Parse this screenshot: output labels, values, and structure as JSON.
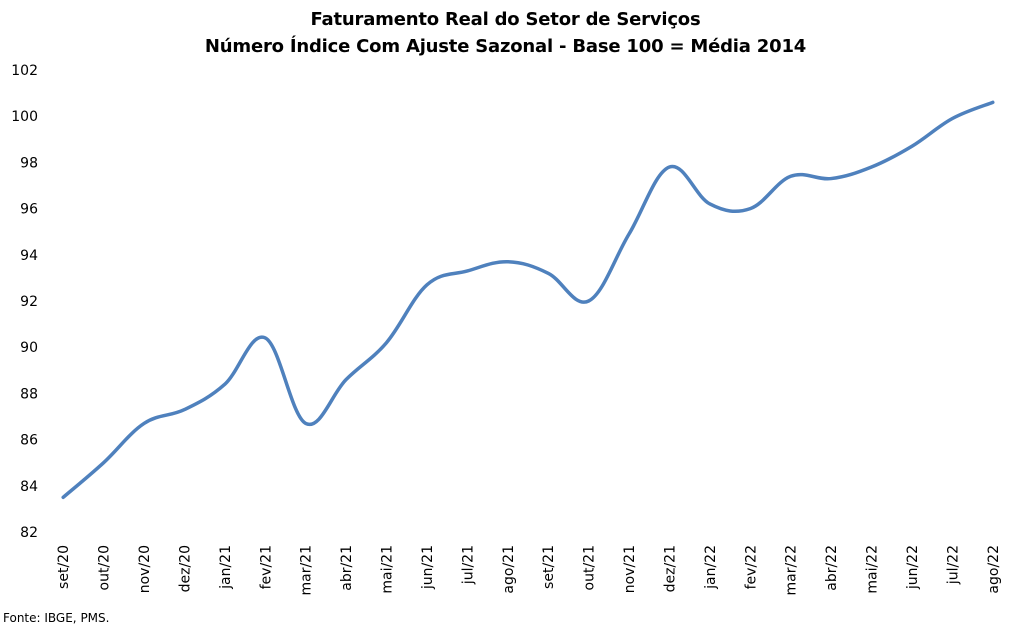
{
  "chart_data": {
    "type": "line",
    "title": "Faturamento Real do Setor de Serviços",
    "subtitle": "Número Índice Com Ajuste Sazonal - Base 100 = Média 2014",
    "categories": [
      "set/20",
      "out/20",
      "nov/20",
      "dez/20",
      "jan/21",
      "fev/21",
      "mar/21",
      "abr/21",
      "mai/21",
      "jun/21",
      "jul/21",
      "ago/21",
      "set/21",
      "out/21",
      "nov/21",
      "dez/21",
      "jan/22",
      "fev/22",
      "mar/22",
      "abr/22",
      "mai/22",
      "jun/22",
      "jul/22",
      "ago/22"
    ],
    "series": [
      {
        "values": [
          83.5,
          85.0,
          86.7,
          87.3,
          88.4,
          90.4,
          86.7,
          88.6,
          90.2,
          92.7,
          93.3,
          93.7,
          93.2,
          92.0,
          94.9,
          97.8,
          96.2,
          96.0,
          97.4,
          97.3,
          97.8,
          98.7,
          99.9,
          100.6
        ],
        "color": "#4f81bd"
      }
    ],
    "yticks": [
      "82",
      "84",
      "86",
      "88",
      "90",
      "92",
      "94",
      "96",
      "98",
      "100",
      "102"
    ],
    "ylim": [
      82,
      102
    ],
    "grid": false,
    "legend": "none"
  },
  "source": "Fonte: IBGE, PMS."
}
